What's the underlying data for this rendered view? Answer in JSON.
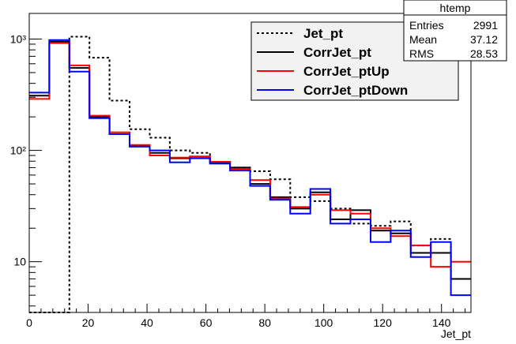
{
  "stats_box": {
    "title": "htemp",
    "rows": [
      {
        "label": "Entries",
        "value": "2991"
      },
      {
        "label": "Mean",
        "value": "37.12"
      },
      {
        "label": "RMS",
        "value": "28.53"
      }
    ]
  },
  "chart_data": {
    "type": "histogram",
    "xlabel": "Jet_pt",
    "ylabel": "",
    "xlim": [
      0,
      150
    ],
    "ylim": [
      3.5,
      1700
    ],
    "yscale": "log",
    "grid": false,
    "legend_position": "top-right",
    "x_ticks": [
      0,
      20,
      40,
      60,
      80,
      100,
      120,
      140
    ],
    "y_ticks": [
      {
        "value": 10,
        "label": "10"
      },
      {
        "value": 100,
        "label": "10²"
      },
      {
        "value": 1000,
        "label": "10³"
      }
    ],
    "bin_edges": [
      0,
      6.818,
      13.636,
      20.455,
      27.273,
      34.091,
      40.909,
      47.727,
      54.545,
      61.364,
      68.182,
      75,
      81.818,
      88.636,
      95.455,
      102.273,
      109.091,
      115.909,
      122.727,
      129.545,
      136.364,
      143.182,
      150
    ],
    "series": [
      {
        "name": "Jet_pt",
        "color": "#000000",
        "dash": "dotted",
        "values": [
          3.5,
          3.5,
          1050,
          680,
          280,
          155,
          130,
          100,
          95,
          78,
          70,
          65,
          55,
          38,
          35,
          30,
          22,
          21,
          23,
          14,
          16,
          7
        ]
      },
      {
        "name": "CorrJet_pt",
        "color": "#000000",
        "dash": "solid",
        "values": [
          310,
          950,
          550,
          200,
          140,
          110,
          95,
          85,
          88,
          78,
          70,
          50,
          38,
          30,
          42,
          24,
          29,
          19,
          18,
          12,
          12,
          7
        ]
      },
      {
        "name": "CorrJet_ptUp",
        "color": "#ff0000",
        "dash": "solid",
        "values": [
          290,
          920,
          580,
          205,
          145,
          112,
          90,
          86,
          88,
          79,
          68,
          54,
          37,
          31,
          40,
          29,
          27,
          20,
          17,
          14,
          9,
          10
        ]
      },
      {
        "name": "CorrJet_ptDown",
        "color": "#0000ff",
        "dash": "solid",
        "values": [
          330,
          980,
          510,
          195,
          140,
          108,
          100,
          78,
          85,
          76,
          66,
          48,
          36,
          27,
          45,
          22,
          24,
          15,
          19,
          11,
          15,
          5
        ]
      }
    ]
  }
}
